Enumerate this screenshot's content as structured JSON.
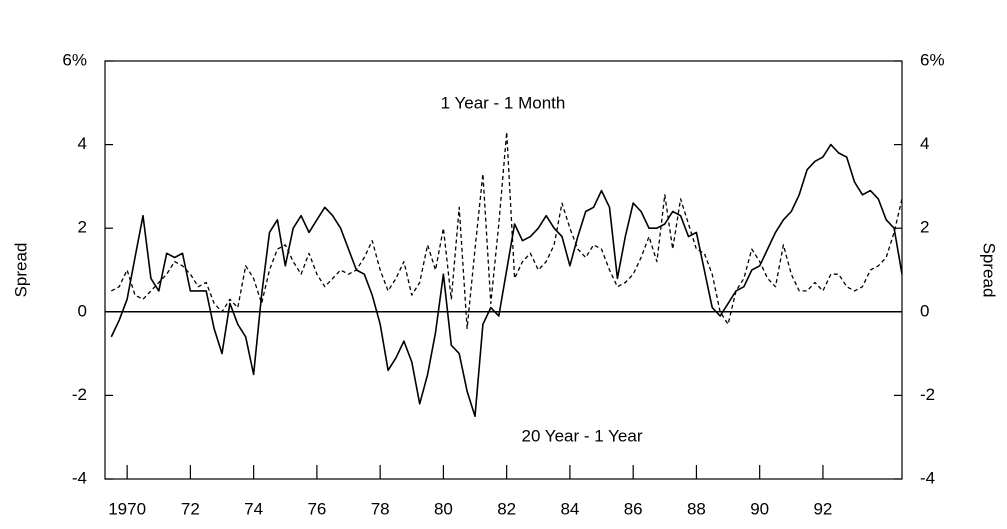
{
  "chart_data": {
    "type": "line",
    "y_label": "Spread",
    "y2_label": "Spread",
    "x": [
      1969.5,
      1969.75,
      1970,
      1970.25,
      1970.5,
      1970.75,
      1971,
      1971.25,
      1971.5,
      1971.75,
      1972,
      1972.25,
      1972.5,
      1972.75,
      1973,
      1973.25,
      1973.5,
      1973.75,
      1974,
      1974.25,
      1974.5,
      1974.75,
      1975,
      1975.25,
      1975.5,
      1975.75,
      1976,
      1976.25,
      1976.5,
      1976.75,
      1977,
      1977.25,
      1977.5,
      1977.75,
      1978,
      1978.25,
      1978.5,
      1978.75,
      1979,
      1979.25,
      1979.5,
      1979.75,
      1980,
      1980.25,
      1980.5,
      1980.75,
      1981,
      1981.25,
      1981.5,
      1981.75,
      1982,
      1982.25,
      1982.5,
      1982.75,
      1983,
      1983.25,
      1983.5,
      1983.75,
      1984,
      1984.25,
      1984.5,
      1984.75,
      1985,
      1985.25,
      1985.5,
      1985.75,
      1986,
      1986.25,
      1986.5,
      1986.75,
      1987,
      1987.25,
      1987.5,
      1987.75,
      1988,
      1988.25,
      1988.5,
      1988.75,
      1989,
      1989.25,
      1989.5,
      1989.75,
      1990,
      1990.25,
      1990.5,
      1990.75,
      1991,
      1991.25,
      1991.5,
      1991.75,
      1992,
      1992.25,
      1992.5,
      1992.75,
      1993,
      1993.25,
      1993.5,
      1993.75,
      1994,
      1994.25,
      1994.5
    ],
    "series": [
      {
        "name": "1 Year - 1 Month",
        "color": "#000000",
        "dash": true,
        "values": [
          0.5,
          0.6,
          1.0,
          0.4,
          0.3,
          0.5,
          0.7,
          0.9,
          1.2,
          1.1,
          0.9,
          0.6,
          0.7,
          0.2,
          0.0,
          0.3,
          0.1,
          1.1,
          0.8,
          0.2,
          1.0,
          1.5,
          1.6,
          1.2,
          0.9,
          1.4,
          0.9,
          0.6,
          0.8,
          1.0,
          0.9,
          1.0,
          1.3,
          1.7,
          1.0,
          0.5,
          0.8,
          1.2,
          0.4,
          0.7,
          1.6,
          1.0,
          2.0,
          0.3,
          2.5,
          -0.4,
          1.5,
          3.3,
          0.2,
          2.1,
          4.3,
          0.8,
          1.2,
          1.4,
          1.0,
          1.2,
          1.6,
          2.6,
          2.0,
          1.5,
          1.3,
          1.6,
          1.5,
          1.0,
          0.6,
          0.7,
          0.9,
          1.3,
          1.8,
          1.2,
          2.8,
          1.5,
          2.7,
          2.1,
          1.5,
          1.4,
          0.9,
          0.0,
          -0.3,
          0.5,
          0.8,
          1.5,
          1.2,
          0.8,
          0.6,
          1.6,
          0.9,
          0.5,
          0.5,
          0.7,
          0.5,
          0.9,
          0.9,
          0.6,
          0.5,
          0.6,
          1.0,
          1.1,
          1.3,
          1.9,
          2.7
        ]
      },
      {
        "name": "20 Year - 1 Year",
        "color": "#000000",
        "dash": false,
        "values": [
          -0.6,
          -0.2,
          0.3,
          1.3,
          2.3,
          0.8,
          0.5,
          1.4,
          1.3,
          1.4,
          0.5,
          0.5,
          0.5,
          -0.4,
          -1.0,
          0.2,
          -0.3,
          -0.6,
          -1.5,
          0.4,
          1.9,
          2.2,
          1.1,
          2.0,
          2.3,
          1.9,
          2.2,
          2.5,
          2.3,
          2.0,
          1.5,
          1.0,
          0.9,
          0.4,
          -0.3,
          -1.4,
          -1.1,
          -0.7,
          -1.2,
          -2.2,
          -1.5,
          -0.5,
          0.9,
          -0.8,
          -1.0,
          -1.9,
          -2.5,
          -0.3,
          0.1,
          -0.1,
          1.0,
          2.1,
          1.7,
          1.8,
          2.0,
          2.3,
          2.0,
          1.8,
          1.1,
          1.8,
          2.4,
          2.5,
          2.9,
          2.5,
          0.8,
          1.8,
          2.6,
          2.4,
          2.0,
          2.0,
          2.1,
          2.4,
          2.3,
          1.8,
          1.9,
          1.0,
          0.1,
          -0.1,
          0.2,
          0.5,
          0.6,
          1.0,
          1.1,
          1.5,
          1.9,
          2.2,
          2.4,
          2.8,
          3.4,
          3.6,
          3.7,
          4.0,
          3.8,
          3.7,
          3.1,
          2.8,
          2.9,
          2.7,
          2.2,
          2.0,
          0.9
        ]
      }
    ],
    "xlim": [
      1969.3,
      1994.5
    ],
    "xticks": [
      {
        "value": 1970,
        "label": "1970"
      },
      {
        "value": 1972,
        "label": "72"
      },
      {
        "value": 1974,
        "label": "74"
      },
      {
        "value": 1976,
        "label": "76"
      },
      {
        "value": 1978,
        "label": "78"
      },
      {
        "value": 1980,
        "label": "80"
      },
      {
        "value": 1982,
        "label": "82"
      },
      {
        "value": 1984,
        "label": "84"
      },
      {
        "value": 1986,
        "label": "86"
      },
      {
        "value": 1988,
        "label": "88"
      },
      {
        "value": 1990,
        "label": "90"
      },
      {
        "value": 1992,
        "label": "92"
      }
    ],
    "ylim": [
      -4,
      6
    ],
    "yticks": [
      -4,
      -2,
      0,
      2,
      4,
      {
        "value": 6,
        "label": "6%"
      }
    ],
    "y2lim": [
      -4,
      6
    ],
    "y2ticks": [
      -4,
      -2,
      0,
      2,
      4,
      {
        "value": 6,
        "label": "6%"
      }
    ],
    "reference_line": 0,
    "grid": false
  }
}
